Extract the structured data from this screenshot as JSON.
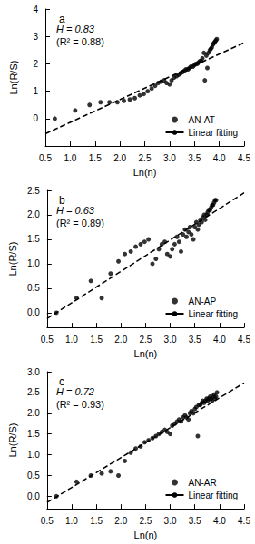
{
  "chart_data": [
    {
      "type": "scatter",
      "title": "a",
      "annotations": [
        "H = 0.83",
        "(R² = 0.88)"
      ],
      "x_label": "Ln(n)",
      "y_label": "Ln(R/S)",
      "xlim": [
        0.5,
        4.5
      ],
      "xticks": [
        0.5,
        {
          "value": 1,
          "label": "1.0"
        },
        1.5,
        {
          "value": 2,
          "label": "2.0"
        },
        2.5,
        {
          "value": 3,
          "label": "3.0"
        },
        3.5,
        {
          "value": 4,
          "label": "4.0"
        },
        4.5
      ],
      "ylim": [
        -1,
        4
      ],
      "yticks": [
        0,
        1,
        2,
        3,
        4
      ],
      "grid": false,
      "legend": "lower right",
      "series": [
        {
          "name": "AN-AT",
          "type": "scatter",
          "color": "#000000",
          "marker": "circle",
          "x": [
            0.69,
            1.1,
            1.39,
            1.61,
            1.79,
            1.95,
            2.08,
            2.2,
            2.3,
            2.4,
            2.48,
            2.56,
            2.64,
            2.71,
            2.77,
            2.83,
            2.89,
            2.94,
            3.0,
            3.04,
            3.09,
            3.14,
            3.18,
            3.22,
            3.26,
            3.3,
            3.33,
            3.37,
            3.4,
            3.43,
            3.47,
            3.5,
            3.53,
            3.56,
            3.58,
            3.61,
            3.64,
            3.66,
            3.69,
            3.71,
            3.74,
            3.76,
            3.78,
            3.81,
            3.83,
            3.85,
            3.87,
            3.89,
            3.91,
            3.93,
            3.95
          ],
          "values": [
            0.0,
            0.3,
            0.5,
            0.6,
            0.6,
            0.6,
            0.65,
            0.7,
            0.75,
            0.85,
            0.9,
            1.0,
            1.1,
            1.2,
            1.3,
            1.35,
            1.4,
            1.3,
            1.25,
            1.4,
            1.5,
            1.55,
            1.6,
            1.65,
            1.7,
            1.75,
            1.8,
            1.8,
            1.85,
            1.9,
            1.9,
            1.95,
            2.0,
            2.0,
            2.05,
            2.1,
            2.1,
            2.2,
            2.4,
            1.4,
            2.3,
            1.85,
            2.4,
            2.5,
            2.55,
            2.6,
            2.7,
            2.75,
            2.8,
            2.85,
            2.9
          ]
        },
        {
          "name": "Linear fitting",
          "type": "line",
          "color": "#000000",
          "line_style": "dashed",
          "x": [
            0.5,
            4.5
          ],
          "values": [
            -0.55,
            2.77
          ]
        }
      ]
    },
    {
      "type": "scatter",
      "title": "b",
      "annotations": [
        "H = 0.63",
        "(R² = 0.89)"
      ],
      "x_label": "Ln(n)",
      "y_label": "Ln(R/S)",
      "xlim": [
        0.5,
        4.5
      ],
      "xticks": [
        0.5,
        {
          "value": 1,
          "label": "1.0"
        },
        1.5,
        {
          "value": 2,
          "label": "2.0"
        },
        2.5,
        {
          "value": 3,
          "label": "3.0"
        },
        3.5,
        {
          "value": 4,
          "label": "4.0"
        },
        4.5
      ],
      "ylim": [
        -0.3,
        2.5
      ],
      "yticks": [
        {
          "value": 0,
          "label": "0.0"
        },
        0.5,
        {
          "value": 1,
          "label": "1.0"
        },
        1.5,
        {
          "value": 2,
          "label": "2.0"
        },
        2.5
      ],
      "grid": false,
      "legend": "lower right",
      "series": [
        {
          "name": "AN-AP",
          "type": "scatter",
          "color": "#000000",
          "marker": "circle",
          "x": [
            0.69,
            1.1,
            1.39,
            1.61,
            1.79,
            1.95,
            2.08,
            2.2,
            2.3,
            2.4,
            2.48,
            2.56,
            2.64,
            2.71,
            2.77,
            2.83,
            2.89,
            2.94,
            3.0,
            3.04,
            3.09,
            3.14,
            3.18,
            3.22,
            3.26,
            3.3,
            3.33,
            3.37,
            3.4,
            3.43,
            3.47,
            3.5,
            3.53,
            3.56,
            3.58,
            3.61,
            3.64,
            3.66,
            3.69,
            3.71,
            3.74,
            3.76,
            3.78,
            3.81,
            3.83,
            3.85,
            3.87,
            3.89,
            3.91,
            3.93
          ],
          "values": [
            0.0,
            0.3,
            0.65,
            0.3,
            0.8,
            1.05,
            1.2,
            1.25,
            1.35,
            1.4,
            1.45,
            1.5,
            1.0,
            1.1,
            1.3,
            1.4,
            1.45,
            1.2,
            1.15,
            1.3,
            1.4,
            1.55,
            1.45,
            1.25,
            1.6,
            1.7,
            1.55,
            1.65,
            1.75,
            1.6,
            1.5,
            1.75,
            1.85,
            1.7,
            1.8,
            1.9,
            1.85,
            1.95,
            2.0,
            1.9,
            2.0,
            2.05,
            2.1,
            2.1,
            2.15,
            2.2,
            2.2,
            2.25,
            2.3,
            2.3
          ]
        },
        {
          "name": "Linear fitting",
          "type": "line",
          "color": "#000000",
          "line_style": "dashed",
          "x": [
            0.5,
            4.5
          ],
          "values": [
            -0.12,
            2.45
          ]
        }
      ]
    },
    {
      "type": "scatter",
      "title": "c",
      "annotations": [
        "H = 0.72",
        "(R² = 0.93)"
      ],
      "x_label": "Ln(n)",
      "y_label": "Ln(R/S)",
      "xlim": [
        0.5,
        4.5
      ],
      "xticks": [
        0.5,
        {
          "value": 1,
          "label": "1.0"
        },
        1.5,
        {
          "value": 2,
          "label": "2.0"
        },
        2.5,
        {
          "value": 3,
          "label": "3.0"
        },
        3.5,
        {
          "value": 4,
          "label": "4.0"
        },
        4.5
      ],
      "ylim": [
        -0.3,
        3.0
      ],
      "yticks": [
        {
          "value": 0,
          "label": "0.0"
        },
        0.5,
        {
          "value": 1,
          "label": "1.0"
        },
        1.5,
        {
          "value": 2,
          "label": "2.0"
        },
        2.5,
        {
          "value": 3,
          "label": "3.0"
        }
      ],
      "grid": false,
      "legend": "lower right",
      "series": [
        {
          "name": "AN-AR",
          "type": "scatter",
          "color": "#000000",
          "marker": "circle",
          "x": [
            0.69,
            1.1,
            1.39,
            1.61,
            1.79,
            1.95,
            2.08,
            2.2,
            2.3,
            2.4,
            2.48,
            2.56,
            2.64,
            2.71,
            2.77,
            2.83,
            2.89,
            2.94,
            3.0,
            3.04,
            3.09,
            3.14,
            3.18,
            3.22,
            3.26,
            3.3,
            3.33,
            3.37,
            3.4,
            3.43,
            3.47,
            3.5,
            3.53,
            3.56,
            3.58,
            3.61,
            3.64,
            3.66,
            3.69,
            3.71,
            3.74,
            3.76,
            3.78,
            3.81,
            3.83,
            3.85,
            3.87,
            3.89,
            3.91,
            3.93,
            3.95
          ],
          "values": [
            0.0,
            0.35,
            0.5,
            0.55,
            0.6,
            0.5,
            0.85,
            1.05,
            1.15,
            1.2,
            1.3,
            1.35,
            1.4,
            1.45,
            1.5,
            1.55,
            1.6,
            1.55,
            1.5,
            1.7,
            1.75,
            1.8,
            1.85,
            1.8,
            1.9,
            1.95,
            1.9,
            1.85,
            2.0,
            2.05,
            2.0,
            2.1,
            2.15,
            1.45,
            2.2,
            2.2,
            2.25,
            2.3,
            2.25,
            2.3,
            2.35,
            2.3,
            2.35,
            2.4,
            2.35,
            2.3,
            2.4,
            2.45,
            2.35,
            2.4,
            2.5
          ]
        },
        {
          "name": "Linear fitting",
          "type": "line",
          "color": "#000000",
          "line_style": "dashed",
          "x": [
            0.5,
            4.5
          ],
          "values": [
            -0.15,
            2.73
          ]
        }
      ]
    }
  ]
}
